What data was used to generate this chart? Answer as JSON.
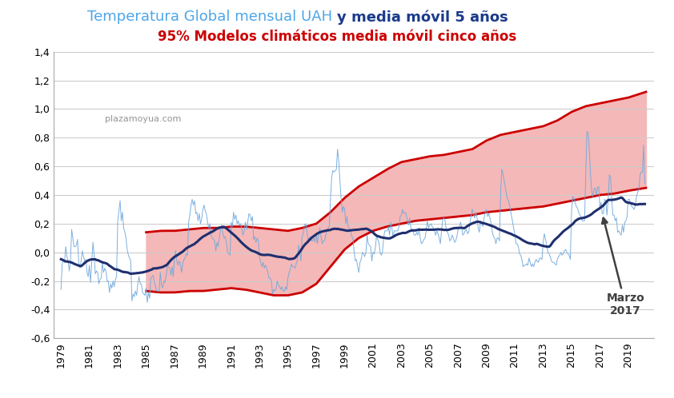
{
  "title_line1_regular": "Temperatura Global mensual UAH ",
  "title_line1_bold": "y media móvil 5 años",
  "title_line2": "95% Modelos climáticos media móvil cinco años",
  "watermark": "plazamoyua.com",
  "annotation": "Marzo\n2017",
  "ylim": [
    -0.6,
    1.4
  ],
  "yticks": [
    -0.6,
    -0.4,
    -0.2,
    0.0,
    0.2,
    0.4,
    0.6,
    0.8,
    1.0,
    1.2,
    1.4
  ],
  "xlabel_years": [
    1979,
    1981,
    1983,
    1985,
    1987,
    1989,
    1991,
    1993,
    1995,
    1997,
    1999,
    2001,
    2003,
    2005,
    2007,
    2009,
    2011,
    2013,
    2015,
    2017,
    2019
  ],
  "color_monthly": "#6fa8dc",
  "color_mavg": "#1f2f6e",
  "color_model_line": "#cc0000",
  "color_model_fill": "#f4b8b8",
  "color_title1_regular": "#4da6e8",
  "color_title1_bold": "#1a3a8a",
  "color_title2": "#cc0000",
  "background_color": "#ffffff",
  "grid_color": "#cccccc",
  "annotation_color": "#404040",
  "title_fontsize": 13,
  "subtitle_fontsize": 12,
  "tick_fontsize": 9,
  "watermark_fontsize": 8,
  "model_upper_points": [
    [
      1985.0,
      0.14
    ],
    [
      1986.0,
      0.15
    ],
    [
      1987.0,
      0.15
    ],
    [
      1988.0,
      0.16
    ],
    [
      1989.0,
      0.17
    ],
    [
      1990.0,
      0.17
    ],
    [
      1991.0,
      0.18
    ],
    [
      1992.0,
      0.18
    ],
    [
      1993.0,
      0.17
    ],
    [
      1994.0,
      0.16
    ],
    [
      1995.0,
      0.15
    ],
    [
      1996.0,
      0.17
    ],
    [
      1997.0,
      0.2
    ],
    [
      1998.0,
      0.28
    ],
    [
      1999.0,
      0.38
    ],
    [
      2000.0,
      0.46
    ],
    [
      2001.0,
      0.52
    ],
    [
      2002.0,
      0.58
    ],
    [
      2003.0,
      0.63
    ],
    [
      2004.0,
      0.65
    ],
    [
      2005.0,
      0.67
    ],
    [
      2006.0,
      0.68
    ],
    [
      2007.0,
      0.7
    ],
    [
      2008.0,
      0.72
    ],
    [
      2009.0,
      0.78
    ],
    [
      2010.0,
      0.82
    ],
    [
      2011.0,
      0.84
    ],
    [
      2012.0,
      0.86
    ],
    [
      2013.0,
      0.88
    ],
    [
      2014.0,
      0.92
    ],
    [
      2015.0,
      0.98
    ],
    [
      2016.0,
      1.02
    ],
    [
      2017.0,
      1.04
    ],
    [
      2018.0,
      1.06
    ],
    [
      2019.0,
      1.08
    ],
    [
      2020.25,
      1.12
    ]
  ],
  "model_lower_points": [
    [
      1985.0,
      -0.27
    ],
    [
      1986.0,
      -0.28
    ],
    [
      1987.0,
      -0.28
    ],
    [
      1988.0,
      -0.27
    ],
    [
      1989.0,
      -0.27
    ],
    [
      1990.0,
      -0.26
    ],
    [
      1991.0,
      -0.25
    ],
    [
      1992.0,
      -0.26
    ],
    [
      1993.0,
      -0.28
    ],
    [
      1994.0,
      -0.3
    ],
    [
      1995.0,
      -0.3
    ],
    [
      1996.0,
      -0.28
    ],
    [
      1997.0,
      -0.22
    ],
    [
      1998.0,
      -0.1
    ],
    [
      1999.0,
      0.02
    ],
    [
      2000.0,
      0.1
    ],
    [
      2001.0,
      0.15
    ],
    [
      2002.0,
      0.18
    ],
    [
      2003.0,
      0.2
    ],
    [
      2004.0,
      0.22
    ],
    [
      2005.0,
      0.23
    ],
    [
      2006.0,
      0.24
    ],
    [
      2007.0,
      0.25
    ],
    [
      2008.0,
      0.26
    ],
    [
      2009.0,
      0.28
    ],
    [
      2010.0,
      0.29
    ],
    [
      2011.0,
      0.3
    ],
    [
      2012.0,
      0.31
    ],
    [
      2013.0,
      0.32
    ],
    [
      2014.0,
      0.34
    ],
    [
      2015.0,
      0.36
    ],
    [
      2016.0,
      0.38
    ],
    [
      2017.0,
      0.4
    ],
    [
      2018.0,
      0.41
    ],
    [
      2019.0,
      0.43
    ],
    [
      2020.25,
      0.45
    ]
  ]
}
